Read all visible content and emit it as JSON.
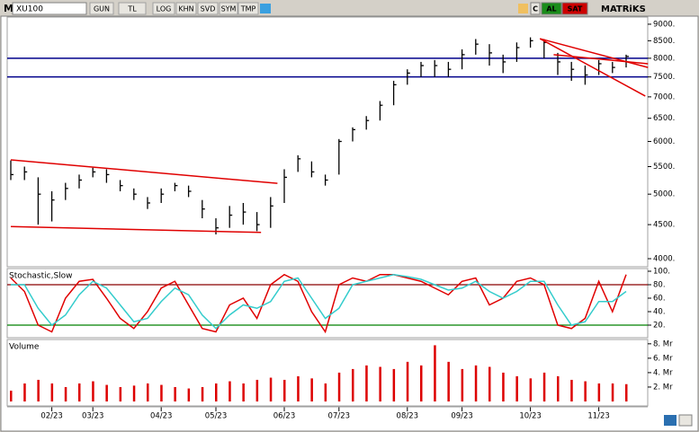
{
  "toolbar": {
    "logo": "M",
    "symbol": "XU100",
    "buttons": [
      "GUN",
      "TL",
      "LOG",
      "KHN",
      "SVD",
      "SYM",
      "TMP"
    ],
    "right": [
      "C",
      "AL",
      "SAT"
    ],
    "brand": "MATRiKS"
  },
  "chart_data": [
    {
      "type": "ohlc",
      "log_scale": true,
      "ylim": [
        3890,
        9225
      ],
      "yticks": [
        {
          "value": 9000,
          "label": "9000."
        },
        {
          "value": 8500,
          "label": "8500."
        },
        {
          "value": 8000,
          "label": "8000."
        },
        {
          "value": 7500,
          "label": "7500."
        },
        {
          "value": 7000,
          "label": "7000."
        },
        {
          "value": 6500,
          "label": "6500."
        },
        {
          "value": 6000,
          "label": "6000."
        },
        {
          "value": 5500,
          "label": "5500."
        },
        {
          "value": 5000,
          "label": "5000."
        },
        {
          "value": 4500,
          "label": "4500."
        },
        {
          "value": 4000,
          "label": "4000."
        }
      ],
      "color": "#000000",
      "high": [
        5620,
        5500,
        5300,
        5050,
        5200,
        5350,
        5480,
        5450,
        5250,
        5100,
        4950,
        5100,
        5200,
        5150,
        4900,
        4600,
        4800,
        4850,
        4700,
        4950,
        5450,
        5720,
        5600,
        5350,
        6050,
        6300,
        6550,
        6900,
        7400,
        7700,
        7900,
        7950,
        7900,
        8250,
        8550,
        8400,
        8100,
        8450,
        8600,
        8550,
        8150,
        7900,
        7800,
        7950,
        7900,
        8100
      ],
      "low": [
        5250,
        5250,
        4500,
        4550,
        4900,
        5100,
        5300,
        5200,
        5050,
        4900,
        4750,
        4850,
        5050,
        4950,
        4600,
        4350,
        4450,
        4500,
        4400,
        4450,
        4850,
        5400,
        5300,
        5150,
        5350,
        6000,
        6250,
        6450,
        6800,
        7300,
        7500,
        7500,
        7500,
        7700,
        8100,
        7800,
        7600,
        7900,
        8300,
        8000,
        7550,
        7400,
        7300,
        7550,
        7600,
        7750
      ],
      "close": [
        5350,
        5400,
        5000,
        4900,
        5100,
        5250,
        5400,
        5350,
        5150,
        5000,
        4850,
        5000,
        5150,
        5050,
        4750,
        4450,
        4650,
        4700,
        4500,
        4800,
        5300,
        5650,
        5400,
        5250,
        6000,
        6250,
        6450,
        6800,
        7300,
        7600,
        7800,
        7800,
        7700,
        8100,
        8400,
        8150,
        7900,
        8300,
        8500,
        8450,
        7900,
        7700,
        7550,
        7850,
        7750,
        8050
      ],
      "hlines": [
        {
          "value": 8000,
          "color": "#00008b"
        },
        {
          "value": 7500,
          "color": "#00008b"
        }
      ],
      "trendlines": [
        {
          "x": [
            0,
            19.5
          ],
          "y": [
            5630,
            5190
          ],
          "color": "#e00000"
        },
        {
          "x": [
            0,
            18.3
          ],
          "y": [
            4470,
            4380
          ],
          "color": "#e00000"
        },
        {
          "x": [
            38.7,
            46.6
          ],
          "y": [
            8560,
            7750
          ],
          "color": "#e00000"
        },
        {
          "x": [
            38.7,
            46.4
          ],
          "y": [
            8560,
            7020
          ],
          "color": "#e00000"
        },
        {
          "x": [
            39.7,
            46.6
          ],
          "y": [
            8100,
            7850
          ],
          "color": "#e00000"
        }
      ]
    },
    {
      "type": "line",
      "title": "Stochastic,Slow",
      "ylim": [
        0,
        100
      ],
      "yticks": [
        {
          "value": 100,
          "label": "100."
        },
        {
          "value": 80,
          "label": "80."
        },
        {
          "value": 60,
          "label": "60."
        },
        {
          "value": 40,
          "label": "40."
        },
        {
          "value": 20,
          "label": "20."
        }
      ],
      "levels": [
        {
          "value": 80,
          "color": "#8b0000"
        },
        {
          "value": 20,
          "color": "#008000"
        }
      ],
      "series": [
        {
          "color": "#e00000",
          "values": [
            90,
            70,
            20,
            10,
            60,
            85,
            88,
            60,
            30,
            15,
            40,
            75,
            85,
            50,
            15,
            10,
            50,
            60,
            30,
            80,
            95,
            85,
            40,
            10,
            80,
            90,
            85,
            95,
            95,
            90,
            85,
            75,
            65,
            85,
            90,
            50,
            60,
            85,
            90,
            80,
            20,
            15,
            30,
            85,
            40,
            95
          ]
        },
        {
          "color": "#33cccc",
          "values": [
            80,
            80,
            45,
            20,
            35,
            65,
            85,
            75,
            50,
            25,
            30,
            55,
            75,
            65,
            35,
            15,
            35,
            50,
            45,
            55,
            85,
            90,
            60,
            30,
            45,
            80,
            85,
            90,
            95,
            92,
            88,
            80,
            72,
            75,
            85,
            70,
            60,
            70,
            85,
            85,
            50,
            20,
            25,
            55,
            55,
            70
          ]
        }
      ]
    },
    {
      "type": "bar",
      "title": "Volume",
      "ylim": [
        0,
        8.6
      ],
      "color": "#dd0000",
      "yticks": [
        {
          "value": 8,
          "label": "8. Mr"
        },
        {
          "value": 6,
          "label": "6. Mr"
        },
        {
          "value": 4,
          "label": "4. Mr"
        },
        {
          "value": 2,
          "label": "2. Mr"
        }
      ],
      "categories": [
        null,
        null,
        null,
        "02/23",
        null,
        null,
        "03/23",
        null,
        null,
        null,
        null,
        "04/23",
        null,
        null,
        null,
        "05/23",
        null,
        null,
        null,
        null,
        "06/23",
        null,
        null,
        null,
        "07/23",
        null,
        null,
        null,
        null,
        "08/23",
        null,
        null,
        null,
        "09/23",
        null,
        null,
        null,
        null,
        "10/23",
        null,
        null,
        null,
        null,
        "11/23",
        null,
        null
      ],
      "values": [
        1.5,
        2.5,
        3,
        2.5,
        2,
        2.5,
        2.8,
        2.3,
        2,
        2.2,
        2.5,
        2.3,
        2,
        1.8,
        2,
        2.5,
        2.8,
        2.5,
        3,
        3.3,
        3,
        3.5,
        3.2,
        2.5,
        4,
        4.5,
        5,
        4.8,
        4.5,
        5.5,
        5,
        7.8,
        5.5,
        4.5,
        5,
        4.8,
        4,
        3.5,
        3.2,
        4,
        3.5,
        3,
        2.8,
        2.5,
        2.5,
        2.4
      ]
    }
  ]
}
